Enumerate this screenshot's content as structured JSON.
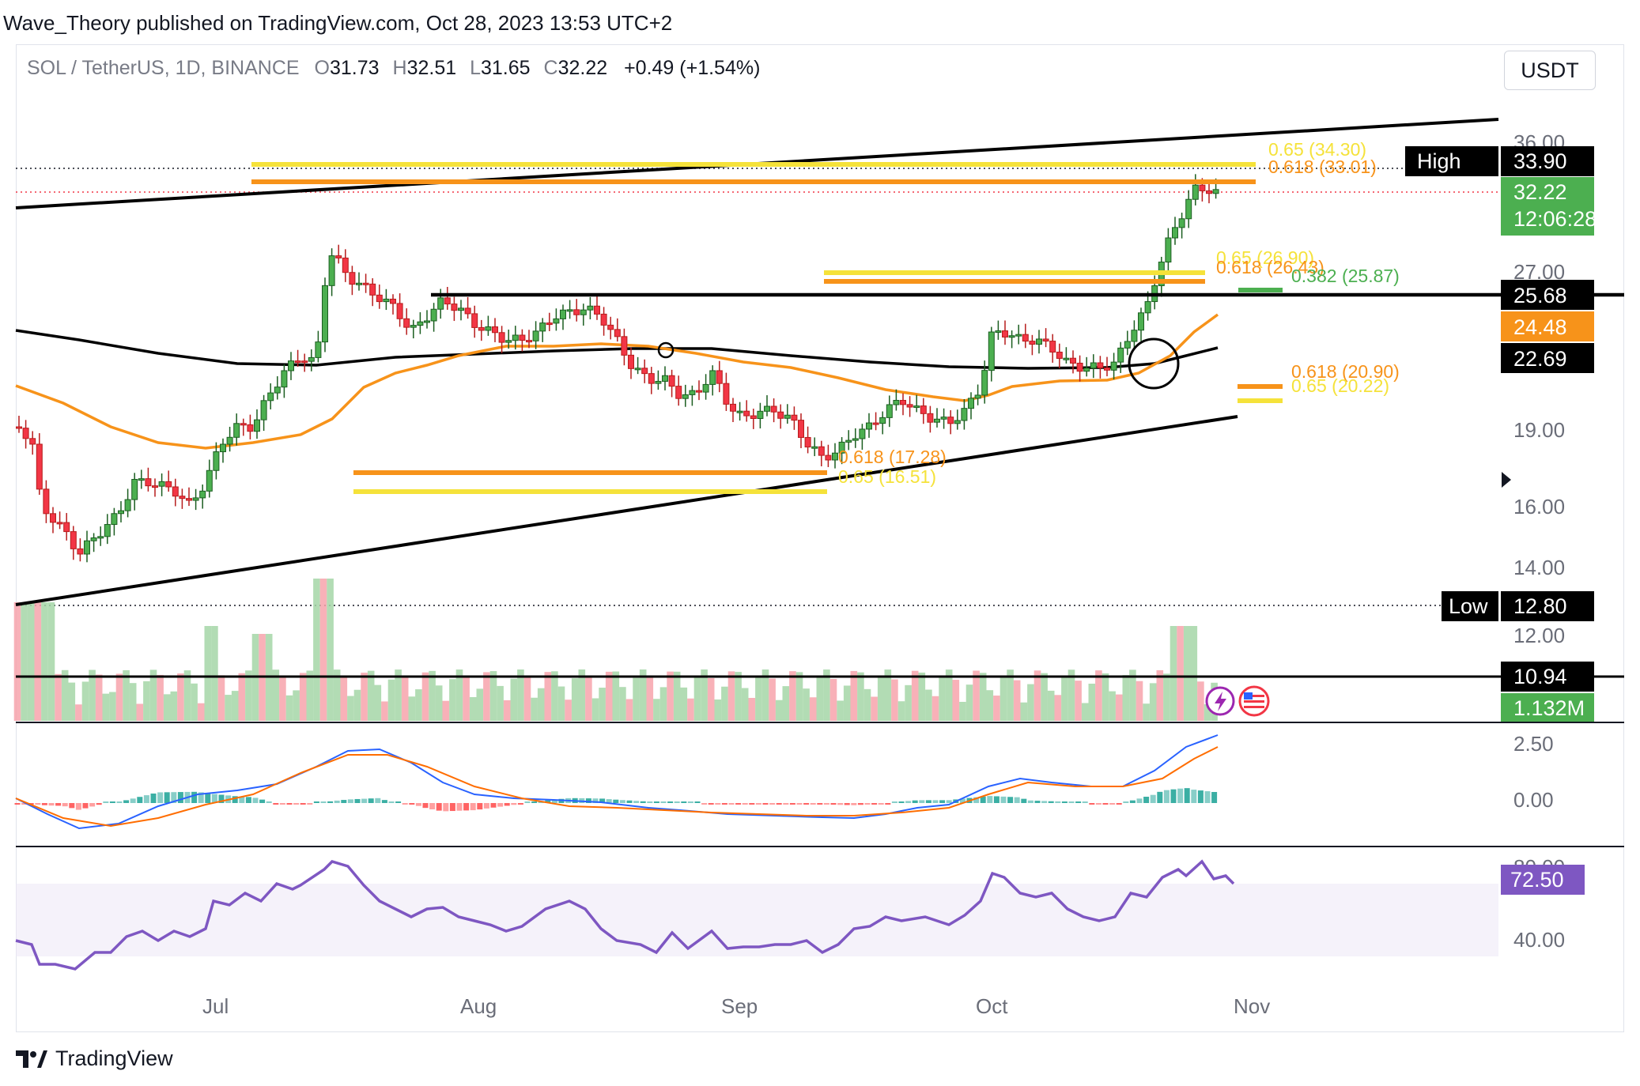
{
  "caption": "Wave_Theory published on TradingView.com, Oct 28, 2023 13:53 UTC+2",
  "symbol": {
    "pair": "SOL / TetherUS, 1D, BINANCE",
    "o_label": "O",
    "o": "31.73",
    "h_label": "H",
    "h": "32.51",
    "l_label": "L",
    "l": "31.65",
    "c_label": "C",
    "c": "32.22",
    "change": "+0.49 (+1.54%)"
  },
  "currency": "USDT",
  "footer": {
    "brand": "TradingView"
  },
  "colors": {
    "up": "#4caf50",
    "down": "#f23645",
    "orange": "#f7931a",
    "yellow": "#f5e23a",
    "green_fib": "#4caf50",
    "black": "#000000",
    "macd": "#2962ff",
    "signal": "#ff6d00",
    "rsi": "#7e57c2",
    "volume_up": "#a5d6a7",
    "volume_down": "#f7a3ac"
  },
  "chart_data": {
    "type": "candlestick",
    "price_axis": {
      "ticks": [
        "36.00",
        "27.00",
        "19.00",
        "16.00",
        "14.00",
        "12.00"
      ],
      "scale": "log"
    },
    "time_axis": {
      "ticks": [
        "Jul",
        "Aug",
        "Sep",
        "Oct",
        "Nov"
      ]
    },
    "fib_levels": [
      {
        "label": "0.65 (34.30)",
        "value": 34.3,
        "color": "yellow"
      },
      {
        "label": "0.618 (33.01)",
        "value": 33.01,
        "color": "orange"
      },
      {
        "label": "0.65 (26.90)",
        "value": 26.9,
        "color": "yellow"
      },
      {
        "label": "0.618 (26.43)",
        "value": 26.43,
        "color": "orange"
      },
      {
        "label": "0.382 (25.87)",
        "value": 25.87,
        "color": "green"
      },
      {
        "label": "0.618 (20.90)",
        "value": 20.9,
        "color": "orange"
      },
      {
        "label": "0.65 (20.22)",
        "value": 20.22,
        "color": "yellow"
      },
      {
        "label": "0.618 (17.28)",
        "value": 17.28,
        "color": "orange"
      },
      {
        "label": "0.65 (16.51)",
        "value": 16.51,
        "color": "yellow"
      }
    ],
    "price_tags": [
      {
        "label": "High",
        "value": "33.90"
      },
      {
        "label": "",
        "value": "32.22",
        "sub": "12:06:28"
      },
      {
        "label": "",
        "value": "25.68"
      },
      {
        "label": "",
        "value": "24.48"
      },
      {
        "label": "",
        "value": "22.69"
      },
      {
        "label": "Low",
        "value": "12.80"
      },
      {
        "label": "",
        "value": "10.94"
      },
      {
        "label": "",
        "value": "1.132M"
      }
    ],
    "macd": {
      "ticks": [
        "2.50",
        "0.00"
      ]
    },
    "rsi": {
      "ticks": [
        "80.00",
        "40.00"
      ],
      "last": "72.50"
    }
  }
}
